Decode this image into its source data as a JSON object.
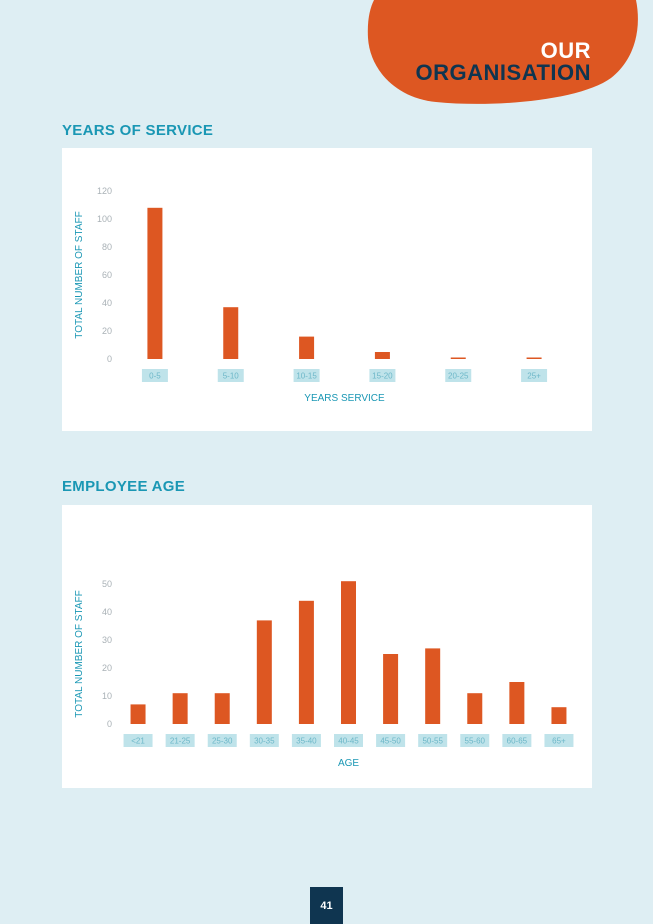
{
  "header": {
    "line1": "OUR",
    "line2": "ORGANISATION",
    "blob_color": "#dd5722",
    "title_color": "#0f3550"
  },
  "page_number": "41",
  "colors": {
    "background": "#deeef3",
    "bar": "#dd5722",
    "accent": "#1a97b4",
    "tick_bg": "#bfe3ea"
  },
  "chart_data": [
    {
      "section_title": "YEARS OF SERVICE",
      "type": "bar",
      "categories": [
        "0-5",
        "5-10",
        "10-15",
        "15-20",
        "20-25",
        "25+"
      ],
      "values": [
        108,
        37,
        16,
        5,
        1,
        1
      ],
      "xlabel": "YEARS SERVICE",
      "ylabel": "TOTAL NUMBER OF STAFF",
      "ylim": [
        0,
        120
      ],
      "yticks": [
        0,
        20,
        40,
        60,
        80,
        100,
        120
      ],
      "grid": false,
      "legend": "none"
    },
    {
      "section_title": "EMPLOYEE AGE",
      "type": "bar",
      "categories": [
        "<21",
        "21-25",
        "25-30",
        "30-35",
        "35-40",
        "40-45",
        "45-50",
        "50-55",
        "55-60",
        "60-65",
        "65+"
      ],
      "values": [
        7,
        11,
        11,
        37,
        44,
        51,
        25,
        27,
        11,
        15,
        6
      ],
      "xlabel": "AGE",
      "ylabel": "TOTAL NUMBER OF STAFF",
      "ylim": [
        0,
        50
      ],
      "yticks": [
        0,
        10,
        20,
        30,
        40,
        50
      ],
      "grid": false,
      "legend": "none"
    }
  ]
}
